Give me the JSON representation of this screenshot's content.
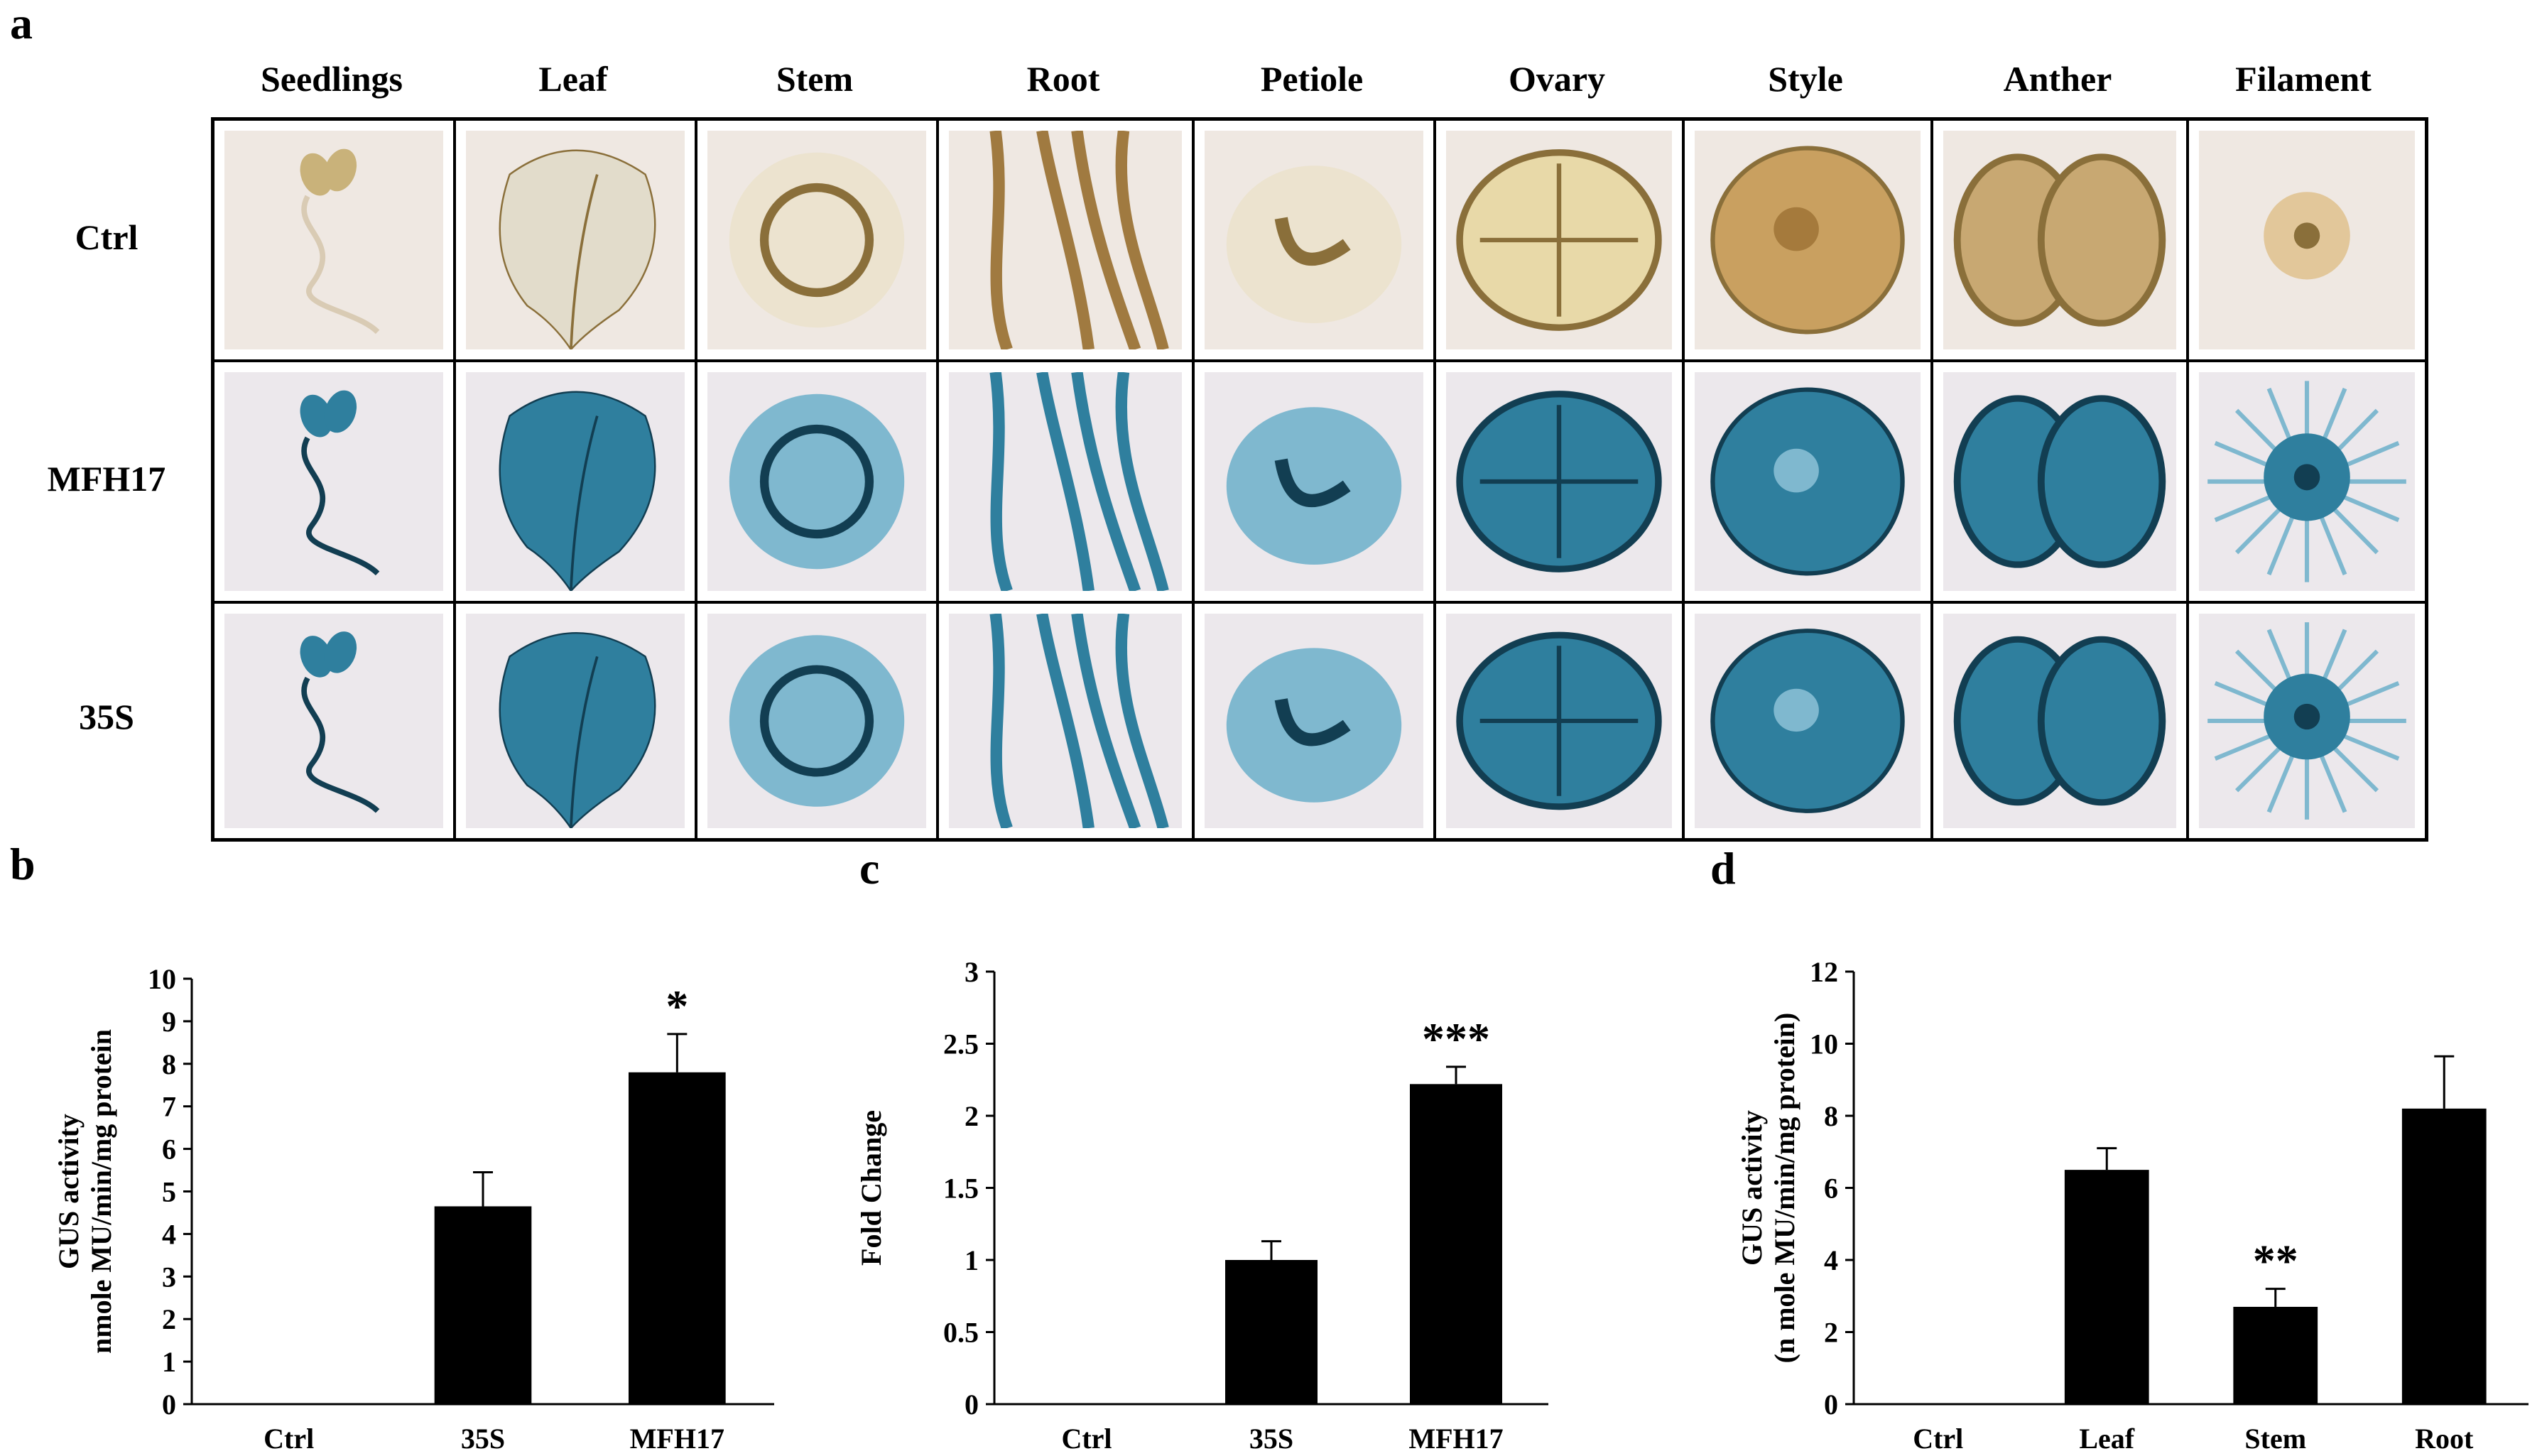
{
  "panels": {
    "a": "a",
    "b": "b",
    "c": "c",
    "d": "d"
  },
  "panel_a": {
    "columns": [
      "Seedlings",
      "Leaf",
      "Stem",
      "Root",
      "Petiole",
      "Ovary",
      "Style",
      "Anther",
      "Filament"
    ],
    "rows": [
      {
        "label": "Ctrl",
        "stain": "none"
      },
      {
        "label": "MFH17",
        "stain": "gus-blue"
      },
      {
        "label": "35S",
        "stain": "gus-blue"
      }
    ],
    "colors": {
      "ctrl_tissue": "#c9b27a",
      "ctrl_background": "#efe8e2",
      "gus_blue": "#2f7f9e",
      "gus_dark": "#123e52",
      "gus_background": "#ece8ec"
    }
  },
  "chart_data": [
    {
      "type": "bar",
      "panel": "b",
      "categories": [
        "Ctrl",
        "35S",
        "MFH17"
      ],
      "values": [
        0,
        4.65,
        7.8
      ],
      "errors": [
        0,
        0.8,
        0.9
      ],
      "significance": [
        "",
        "",
        "*"
      ],
      "ylabel_lines": [
        "GUS activity",
        "nmole MU/min/mg protein"
      ],
      "ylim": [
        0,
        10
      ],
      "yticks": [
        "0",
        "1",
        "2",
        "3",
        "4",
        "5",
        "6",
        "7",
        "8",
        "9",
        "10"
      ],
      "grid": false,
      "bar_color": "#000000"
    },
    {
      "type": "bar",
      "panel": "c",
      "categories": [
        "Ctrl",
        "35S",
        "MFH17"
      ],
      "values": [
        0,
        1.0,
        2.22
      ],
      "errors": [
        0,
        0.13,
        0.12
      ],
      "significance": [
        "",
        "",
        "***"
      ],
      "ylabel_lines": [
        "Fold Change"
      ],
      "ylim": [
        0,
        3
      ],
      "yticks": [
        "0",
        "0.5",
        "1",
        "1.5",
        "2",
        "2.5",
        "3"
      ],
      "grid": false,
      "bar_color": "#000000"
    },
    {
      "type": "bar",
      "panel": "d",
      "categories": [
        "Ctrl",
        "Leaf",
        "Stem",
        "Root"
      ],
      "values": [
        0,
        6.5,
        2.7,
        8.2
      ],
      "errors": [
        0,
        0.6,
        0.5,
        1.45
      ],
      "significance": [
        "",
        "",
        "**",
        ""
      ],
      "ylabel_lines": [
        "GUS activity",
        "(n mole MU/min/mg protein)"
      ],
      "ylim": [
        0,
        12
      ],
      "yticks": [
        "0",
        "2",
        "4",
        "6",
        "8",
        "10",
        "12"
      ],
      "grid": false,
      "bar_color": "#000000"
    }
  ]
}
